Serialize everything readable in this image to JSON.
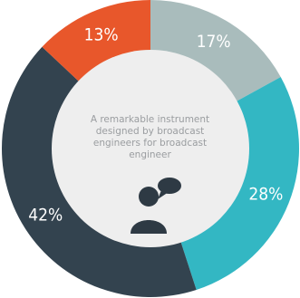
{
  "chart_data": {
    "type": "pie",
    "donut": true,
    "slices": [
      {
        "label": "17%",
        "value": 17,
        "color": "#a9bcbc"
      },
      {
        "label": "28%",
        "value": 28,
        "color": "#33b7c3"
      },
      {
        "label": "42%",
        "value": 42,
        "color": "#33434f"
      },
      {
        "label": "13%",
        "value": 13,
        "color": "#e8572b"
      }
    ],
    "center_text": [
      "A remarkable instrument",
      "designed by broadcast",
      "engineers for broadcast",
      "engineer"
    ]
  },
  "icon": "user-chat-icon",
  "colors": {
    "hole": "#eeeeee",
    "icon": "#2e3a44",
    "center_text": "#9a9da0"
  }
}
